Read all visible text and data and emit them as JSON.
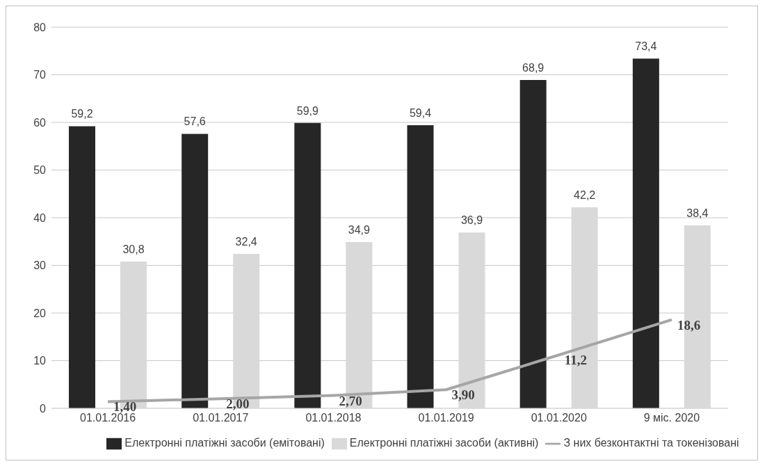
{
  "chart_data": {
    "type": "bar",
    "categories": [
      "01.01.2016",
      "01.01.2017",
      "01.01.2018",
      "01.01.2019",
      "01.01.2020",
      "9 міс. 2020"
    ],
    "series": [
      {
        "name": "Електронні платіжні засоби (емітовані)",
        "color": "#262626",
        "values": [
          59.2,
          57.6,
          59.9,
          59.4,
          68.9,
          73.4
        ],
        "value_labels": [
          "59,2",
          "57,6",
          "59,9",
          "59,4",
          "68,9",
          "73,4"
        ]
      },
      {
        "name": "Електронні платіжні засоби (активні)",
        "color": "#d9d9d9",
        "values": [
          30.8,
          32.4,
          34.9,
          36.9,
          42.2,
          38.4
        ],
        "value_labels": [
          "30,8",
          "32,4",
          "34,9",
          "36,9",
          "42,2",
          "38,4"
        ]
      },
      {
        "name": "З них безконтактні та токенізовані",
        "type": "line",
        "color": "#a6a6a6",
        "values": [
          1.4,
          2.0,
          2.7,
          3.9,
          11.2,
          18.6
        ],
        "value_labels": [
          "1,40",
          "2,00",
          "2,70",
          "3,90",
          "11,2",
          "18,6"
        ]
      }
    ],
    "ylim": [
      0,
      80
    ],
    "yticks": [
      0,
      10,
      20,
      30,
      40,
      50,
      60,
      70,
      80
    ],
    "grid": "y",
    "legend": "bottom",
    "marker": "none",
    "line_style": "solid"
  }
}
